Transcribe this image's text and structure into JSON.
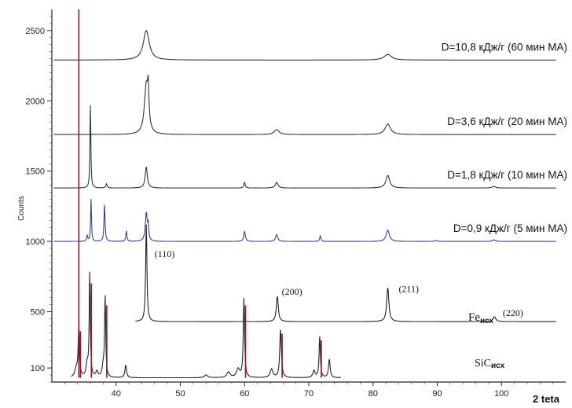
{
  "chart_data": {
    "type": "line",
    "xlabel": "2 teta",
    "ylabel": "Counts",
    "xlim": [
      30,
      110
    ],
    "ylim": [
      0,
      2650
    ],
    "x_ticks": [
      40,
      50,
      60,
      70,
      80,
      90,
      100
    ],
    "y_ticks": [
      100,
      500,
      1000,
      1500,
      2000,
      2500
    ],
    "grid": false,
    "series": [
      {
        "name": "D=10,8 кДж/г (60 мин МА)",
        "baseline": 2290,
        "color": "#333333",
        "peaks": [
          {
            "x": 44.7,
            "h": 210,
            "w": 0.55
          },
          {
            "x": 82.3,
            "h": 40,
            "w": 0.7
          }
        ]
      },
      {
        "name": "D=3,6 кДж/г (20 мин МА)",
        "baseline": 1760,
        "color": "#333333",
        "peaks": [
          {
            "x": 44.7,
            "h": 350,
            "w": 0.35
          },
          {
            "x": 45.0,
            "h": 220,
            "w": 0.12
          },
          {
            "x": 65.0,
            "h": 35,
            "w": 0.45
          },
          {
            "x": 82.3,
            "h": 75,
            "w": 0.5
          }
        ]
      },
      {
        "name": "D=1,8 кДж/г (10 мин МА)",
        "baseline": 1380,
        "color": "#333333",
        "peaks": [
          {
            "x": 36.0,
            "h": 590,
            "w": 0.08
          },
          {
            "x": 38.5,
            "h": 30,
            "w": 0.12
          },
          {
            "x": 44.7,
            "h": 150,
            "w": 0.2
          },
          {
            "x": 60.0,
            "h": 40,
            "w": 0.12
          },
          {
            "x": 65.0,
            "h": 40,
            "w": 0.25
          },
          {
            "x": 82.3,
            "h": 90,
            "w": 0.35
          },
          {
            "x": 98.8,
            "h": 12,
            "w": 0.3
          }
        ]
      },
      {
        "name": "D=0,9 кДж/г (5 мин МА)",
        "baseline": 1000,
        "color": "#3a3f8a",
        "peaks": [
          {
            "x": 35.5,
            "h": 40,
            "w": 0.1
          },
          {
            "x": 36.1,
            "h": 300,
            "w": 0.08
          },
          {
            "x": 38.2,
            "h": 260,
            "w": 0.1
          },
          {
            "x": 41.6,
            "h": 75,
            "w": 0.1
          },
          {
            "x": 44.7,
            "h": 200,
            "w": 0.18
          },
          {
            "x": 45.0,
            "h": 100,
            "w": 0.1
          },
          {
            "x": 60.0,
            "h": 70,
            "w": 0.15
          },
          {
            "x": 65.0,
            "h": 50,
            "w": 0.2
          },
          {
            "x": 71.8,
            "h": 40,
            "w": 0.12
          },
          {
            "x": 82.3,
            "h": 80,
            "w": 0.3
          },
          {
            "x": 89.8,
            "h": 8,
            "w": 0.2
          },
          {
            "x": 98.8,
            "h": 12,
            "w": 0.25
          }
        ]
      },
      {
        "name": "Fe исх",
        "baseline": 430,
        "color": "#222222",
        "peaks": [
          {
            "x": 44.7,
            "h": 690,
            "w": 0.12
          },
          {
            "x": 65.1,
            "h": 180,
            "w": 0.18
          },
          {
            "x": 82.3,
            "h": 240,
            "w": 0.2
          },
          {
            "x": 98.9,
            "h": 35,
            "w": 0.25
          }
        ]
      },
      {
        "name": "SiC исх",
        "baseline": 30,
        "color": "#222222",
        "peaks": [
          {
            "x": 33.8,
            "h": 60,
            "w": 0.25
          },
          {
            "x": 34.2,
            "h": 360,
            "w": 0.12
          },
          {
            "x": 35.5,
            "h": 90,
            "w": 0.2
          },
          {
            "x": 35.9,
            "h": 730,
            "w": 0.1
          },
          {
            "x": 37.0,
            "h": 40,
            "w": 0.2
          },
          {
            "x": 38.0,
            "h": 80,
            "w": 0.2
          },
          {
            "x": 38.3,
            "h": 560,
            "w": 0.1
          },
          {
            "x": 41.5,
            "h": 90,
            "w": 0.15
          },
          {
            "x": 54.0,
            "h": 20,
            "w": 0.3
          },
          {
            "x": 57.5,
            "h": 40,
            "w": 0.3
          },
          {
            "x": 59.0,
            "h": 60,
            "w": 0.3
          },
          {
            "x": 59.9,
            "h": 560,
            "w": 0.12
          },
          {
            "x": 64.2,
            "h": 60,
            "w": 0.25
          },
          {
            "x": 65.6,
            "h": 340,
            "w": 0.15
          },
          {
            "x": 70.8,
            "h": 50,
            "w": 0.2
          },
          {
            "x": 71.7,
            "h": 290,
            "w": 0.12
          },
          {
            "x": 73.2,
            "h": 130,
            "w": 0.15
          }
        ],
        "overlay": {
          "color": "#8b1c2a",
          "tall_line": {
            "x": 34.2,
            "top": 2650
          }
        }
      }
    ],
    "annotations": [
      {
        "text": "(110)",
        "x": 46.0,
        "y": 890
      },
      {
        "text": "(200)",
        "x": 65.8,
        "y": 620
      },
      {
        "text": "(211)",
        "x": 84.0,
        "y": 640
      },
      {
        "text": "(220)",
        "x": 100.2,
        "y": 470
      }
    ],
    "labels": {
      "fe": {
        "main": "Fe",
        "sub": "исх"
      },
      "sic": {
        "main": "SiC",
        "sub": "исх"
      }
    }
  }
}
